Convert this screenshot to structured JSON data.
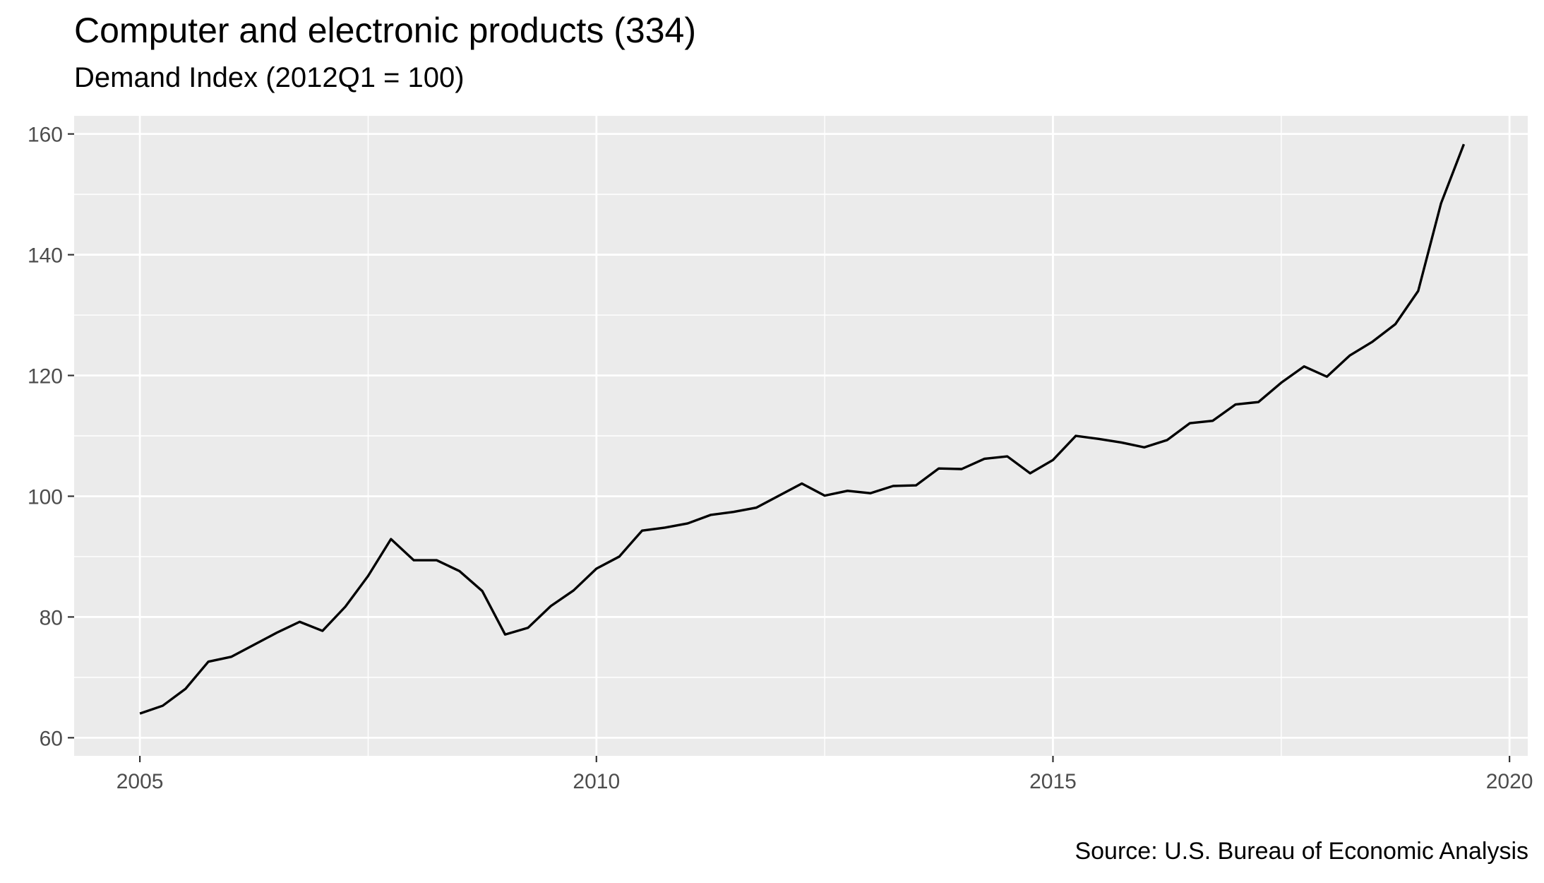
{
  "chart_data": {
    "type": "line",
    "title": "Computer and electronic products (334)",
    "subtitle": "Demand Index (2012Q1 = 100)",
    "caption": "Source: U.S. Bureau of Economic Analysis",
    "xlabel": "",
    "ylabel": "",
    "xlim": [
      2004.28,
      2020.2
    ],
    "ylim": [
      57,
      163
    ],
    "x_ticks": [
      2005,
      2010,
      2015,
      2020
    ],
    "x_tick_labels": [
      "2005",
      "2010",
      "2015",
      "2020"
    ],
    "y_ticks": [
      60,
      80,
      100,
      120,
      140,
      160
    ],
    "y_tick_labels": [
      "60",
      "80",
      "100",
      "120",
      "140",
      "160"
    ],
    "grid": true,
    "legend": "none",
    "colors": {
      "panel": "#ebebeb",
      "grid": "#ffffff",
      "line": "#000000",
      "tick_text": "#4d4d4d",
      "tick_mark": "#333333"
    },
    "series": [
      {
        "x": [
          "2005Q1",
          "2005Q2",
          "2005Q3",
          "2005Q4",
          "2006Q1",
          "2006Q2",
          "2006Q3",
          "2006Q4",
          "2007Q1",
          "2007Q2",
          "2007Q3",
          "2007Q4",
          "2008Q1",
          "2008Q2",
          "2008Q3",
          "2008Q4",
          "2009Q1",
          "2009Q2",
          "2009Q3",
          "2009Q4",
          "2010Q1",
          "2010Q2",
          "2010Q3",
          "2010Q4",
          "2011Q1",
          "2011Q2",
          "2011Q3",
          "2011Q4",
          "2012Q1",
          "2012Q2",
          "2012Q3",
          "2012Q4",
          "2013Q1",
          "2013Q2",
          "2013Q3",
          "2013Q4",
          "2014Q1",
          "2014Q2",
          "2014Q3",
          "2014Q4",
          "2015Q1",
          "2015Q2",
          "2015Q3",
          "2015Q4",
          "2016Q1",
          "2016Q2",
          "2016Q3",
          "2016Q4",
          "2017Q1",
          "2017Q2",
          "2017Q3",
          "2017Q4",
          "2018Q1",
          "2018Q2",
          "2018Q3",
          "2018Q4",
          "2019Q1",
          "2019Q2",
          "2019Q3"
        ],
        "values": [
          64.0,
          65.3,
          68.1,
          72.6,
          73.4,
          75.4,
          77.4,
          79.2,
          77.7,
          81.7,
          86.8,
          92.9,
          89.4,
          89.4,
          87.6,
          84.3,
          77.1,
          78.2,
          81.8,
          84.4,
          88.0,
          90.0,
          94.3,
          94.8,
          95.5,
          96.9,
          97.4,
          98.1,
          100.1,
          102.1,
          100.1,
          100.9,
          100.5,
          101.7,
          101.8,
          104.6,
          104.5,
          106.2,
          106.6,
          103.8,
          106.0,
          110.0,
          109.5,
          108.9,
          108.1,
          109.3,
          112.1,
          112.5,
          115.2,
          115.6,
          118.8,
          121.5,
          119.8,
          123.3,
          125.6,
          128.5,
          134.0,
          148.5,
          158.3
        ]
      }
    ]
  }
}
